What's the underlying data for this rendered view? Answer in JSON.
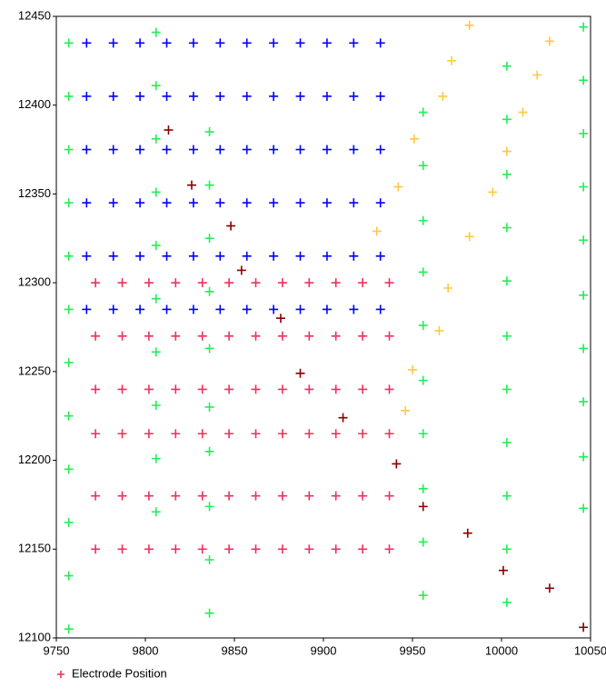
{
  "chart_data": {
    "type": "scatter",
    "xlim": [
      9750,
      10050
    ],
    "xticks": [
      9750,
      9800,
      9850,
      9900,
      9950,
      10000,
      10050
    ],
    "ylim": [
      12100,
      12450
    ],
    "yticks": [
      12100,
      12150,
      12200,
      12250,
      12300,
      12350,
      12400,
      12450
    ],
    "legend": "bottom-left",
    "series": [
      {
        "name": "Electrode Position",
        "color": "#f0305a",
        "x": [
          9772,
          9787,
          9802,
          9817,
          9832,
          9847,
          9862,
          9877,
          9892,
          9907,
          9922,
          9937,
          9772,
          9787,
          9802,
          9817,
          9832,
          9847,
          9862,
          9877,
          9892,
          9907,
          9922,
          9937,
          9772,
          9787,
          9802,
          9817,
          9832,
          9847,
          9862,
          9877,
          9892,
          9907,
          9922,
          9937,
          9772,
          9787,
          9802,
          9817,
          9832,
          9847,
          9862,
          9877,
          9892,
          9907,
          9922,
          9937,
          9772,
          9787,
          9802,
          9817,
          9832,
          9847,
          9862,
          9877,
          9892,
          9907,
          9922,
          9937,
          9772,
          9787,
          9802,
          9817,
          9832,
          9847,
          9862,
          9877,
          9892,
          9907,
          9922,
          9937
        ],
        "values": [
          12300,
          12300,
          12300,
          12300,
          12300,
          12300,
          12300,
          12300,
          12300,
          12300,
          12300,
          12300,
          12270,
          12270,
          12270,
          12270,
          12270,
          12270,
          12270,
          12270,
          12270,
          12270,
          12270,
          12270,
          12240,
          12240,
          12240,
          12240,
          12240,
          12240,
          12240,
          12240,
          12240,
          12240,
          12240,
          12240,
          12215,
          12215,
          12215,
          12215,
          12215,
          12215,
          12215,
          12215,
          12215,
          12215,
          12215,
          12215,
          12180,
          12180,
          12180,
          12180,
          12180,
          12180,
          12180,
          12180,
          12180,
          12180,
          12180,
          12180,
          12150,
          12150,
          12150,
          12150,
          12150,
          12150,
          12150,
          12150,
          12150,
          12150,
          12150,
          12150
        ]
      },
      {
        "color": "#0000ff",
        "x": [
          9767,
          9782,
          9797,
          9812,
          9827,
          9842,
          9857,
          9872,
          9887,
          9902,
          9917,
          9932,
          9767,
          9782,
          9797,
          9812,
          9827,
          9842,
          9857,
          9872,
          9887,
          9902,
          9917,
          9932,
          9767,
          9782,
          9797,
          9812,
          9827,
          9842,
          9857,
          9872,
          9887,
          9902,
          9917,
          9932,
          9767,
          9782,
          9797,
          9812,
          9827,
          9842,
          9857,
          9872,
          9887,
          9902,
          9917,
          9932,
          9767,
          9782,
          9797,
          9812,
          9827,
          9842,
          9857,
          9872,
          9887,
          9902,
          9917,
          9932,
          9767,
          9782,
          9797,
          9812,
          9827,
          9842,
          9857,
          9872,
          9887,
          9902,
          9917,
          9932
        ],
        "values": [
          12435,
          12435,
          12435,
          12435,
          12435,
          12435,
          12435,
          12435,
          12435,
          12435,
          12435,
          12435,
          12405,
          12405,
          12405,
          12405,
          12405,
          12405,
          12405,
          12405,
          12405,
          12405,
          12405,
          12405,
          12375,
          12375,
          12375,
          12375,
          12375,
          12375,
          12375,
          12375,
          12375,
          12375,
          12375,
          12375,
          12345,
          12345,
          12345,
          12345,
          12345,
          12345,
          12345,
          12345,
          12345,
          12345,
          12345,
          12345,
          12315,
          12315,
          12315,
          12315,
          12315,
          12315,
          12315,
          12315,
          12315,
          12315,
          12315,
          12315,
          12285,
          12285,
          12285,
          12285,
          12285,
          12285,
          12285,
          12285,
          12285,
          12285,
          12285,
          12285
        ]
      },
      {
        "color": "#22ee55",
        "x": [
          9757,
          9757,
          9757,
          9757,
          9757,
          9757,
          9757,
          9757,
          9757,
          9757,
          9757,
          9757,
          9806,
          9806,
          9806,
          9806,
          9806,
          9806,
          9806,
          9806,
          9806,
          9806,
          9836,
          9836,
          9836,
          9836,
          9836,
          9836,
          9836,
          9836,
          9836,
          9836,
          9956,
          9956,
          9956,
          9956,
          9956,
          9956,
          9956,
          9956,
          9956,
          9956,
          10003,
          10003,
          10003,
          10003,
          10003,
          10003,
          10003,
          10003,
          10003,
          10003,
          10003,
          10046,
          10046,
          10046,
          10046,
          10046,
          10046,
          10046,
          10046,
          10046,
          10046
        ],
        "values": [
          12435,
          12405,
          12375,
          12345,
          12315,
          12285,
          12255,
          12225,
          12195,
          12165,
          12135,
          12105,
          12441,
          12411,
          12381,
          12351,
          12321,
          12291,
          12261,
          12231,
          12201,
          12171,
          12385,
          12355,
          12325,
          12295,
          12263,
          12230,
          12205,
          12174,
          12144,
          12114,
          12396,
          12366,
          12335,
          12306,
          12276,
          12245,
          12215,
          12184,
          12154,
          12124,
          12422,
          12392,
          12361,
          12331,
          12301,
          12270,
          12240,
          12210,
          12180,
          12150,
          12120,
          12444,
          12414,
          12384,
          12354,
          12324,
          12293,
          12263,
          12233,
          12202,
          12173
        ]
      },
      {
        "color": "#ffc845",
        "x": [
          9982,
          10027,
          10020,
          9972,
          9967,
          10012,
          9951,
          10003,
          9942,
          9995,
          9930,
          9982,
          9970,
          9965,
          9950,
          9946
        ],
        "values": [
          12445,
          12436,
          12417,
          12425,
          12405,
          12396,
          12381,
          12374,
          12354,
          12351,
          12329,
          12326,
          12297,
          12273,
          12251,
          12228
        ]
      },
      {
        "color": "#8b0000",
        "x": [
          9813,
          9826,
          9848,
          9854,
          9876,
          9887,
          9911,
          9941,
          9956,
          9981,
          10001,
          10027,
          10046
        ],
        "values": [
          12386,
          12355,
          12332,
          12307,
          12280,
          12249,
          12224,
          12198,
          12174,
          12159,
          12138,
          12128,
          12106
        ]
      }
    ]
  }
}
